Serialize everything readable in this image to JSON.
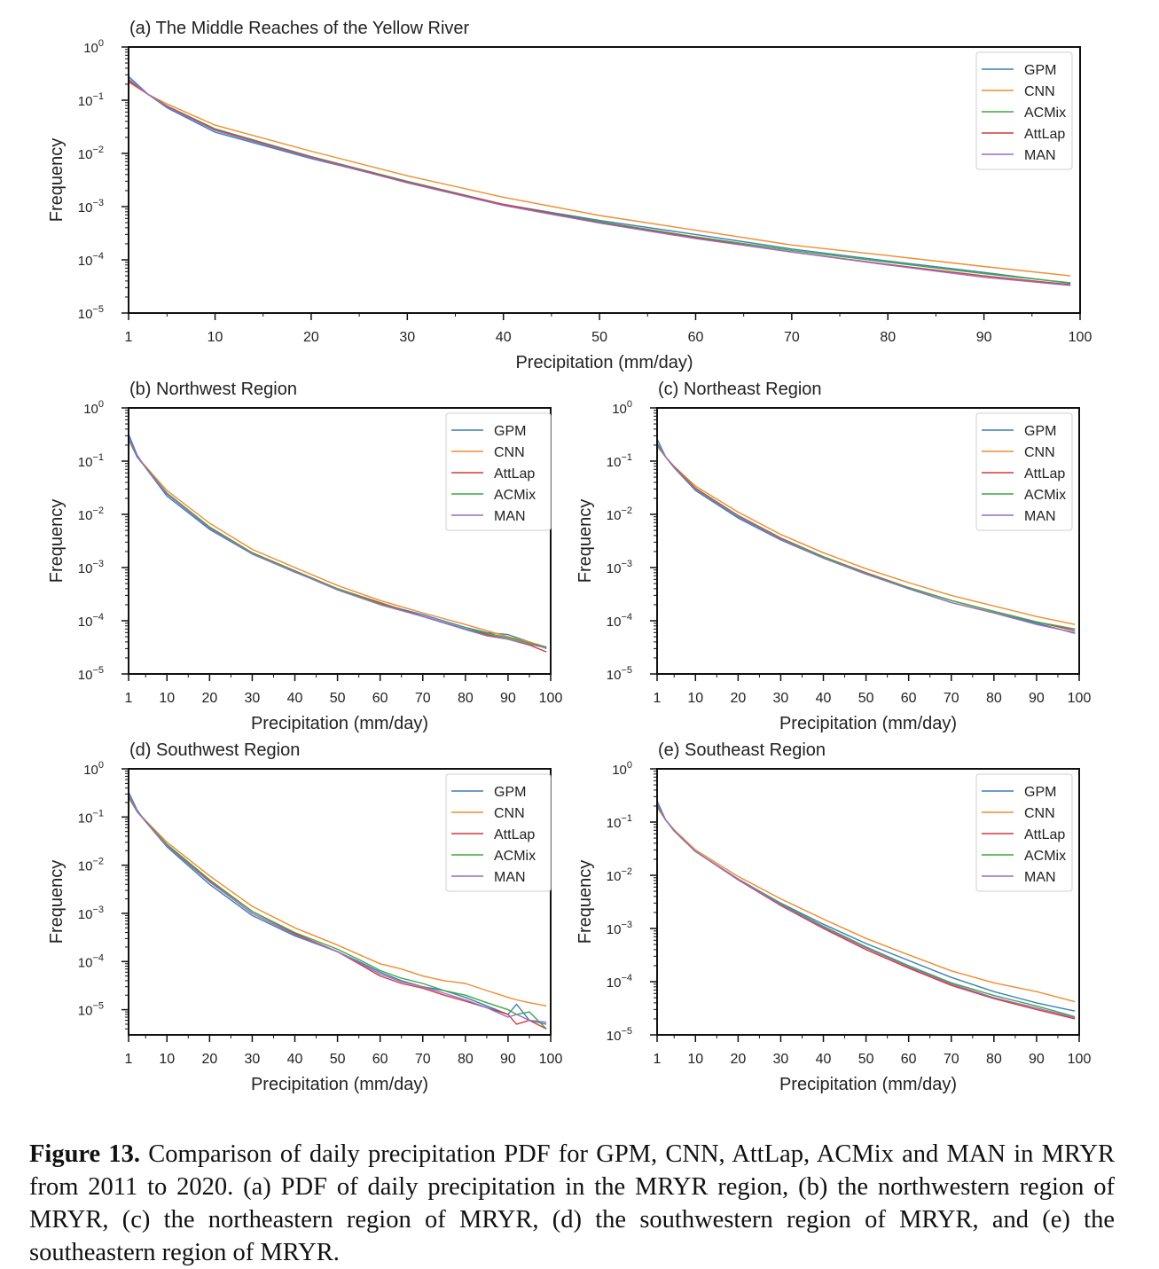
{
  "caption": {
    "label": "Figure 13.",
    "text": "Comparison of daily precipitation PDF for GPM, CNN, AttLap, ACMix and MAN in MRYR from 2011 to 2020. (a) PDF of daily precipitation in the MRYR region, (b) the northwestern region of MRYR, (c) the northeastern region of MRYR, (d) the southwestern region of MRYR, and (e) the southeastern region of MRYR."
  },
  "colors": {
    "GPM": "#3b7fb8",
    "CNN": "#f08c2e",
    "ACMix": "#3caa3c",
    "AttLap": "#d43a3a",
    "MAN": "#9a6cc4"
  },
  "chart_data": [
    {
      "id": "a",
      "type": "line",
      "title": "(a) The Middle Reaches of the Yellow River",
      "xlabel": "Precipitation (mm/day)",
      "ylabel": "Frequency",
      "xlim": [
        1,
        100
      ],
      "ylim": [
        1e-05,
        1
      ],
      "yscale": "log",
      "xticks": [
        1,
        10,
        20,
        30,
        40,
        50,
        60,
        70,
        80,
        90,
        100
      ],
      "yticks": [
        {
          "base": "10",
          "exp": "0"
        },
        {
          "base": "10",
          "exp": "−1"
        },
        {
          "base": "10",
          "exp": "−2"
        },
        {
          "base": "10",
          "exp": "−3"
        },
        {
          "base": "10",
          "exp": "−4"
        },
        {
          "base": "10",
          "exp": "−5"
        }
      ],
      "legend": [
        "GPM",
        "CNN",
        "ACMix",
        "AttLap",
        "MAN"
      ],
      "legend_position": "top-right",
      "x": [
        1,
        3,
        5,
        10,
        20,
        30,
        40,
        50,
        60,
        70,
        80,
        90,
        99
      ],
      "series": [
        {
          "name": "GPM",
          "values": [
            0.28,
            0.13,
            0.072,
            0.025,
            0.008,
            0.0029,
            0.0011,
            0.00055,
            0.0003,
            0.00016,
            9.5e-05,
            5.8e-05,
            3.6e-05
          ]
        },
        {
          "name": "CNN",
          "values": [
            0.22,
            0.13,
            0.085,
            0.034,
            0.011,
            0.0038,
            0.0015,
            0.00068,
            0.00036,
            0.00019,
            0.00012,
            7.5e-05,
            5e-05
          ]
        },
        {
          "name": "ACMix",
          "values": [
            0.24,
            0.13,
            0.078,
            0.029,
            0.0087,
            0.003,
            0.0011,
            0.00052,
            0.00027,
            0.00015,
            9e-05,
            5.5e-05,
            3.7e-05
          ]
        },
        {
          "name": "AttLap",
          "values": [
            0.23,
            0.13,
            0.077,
            0.028,
            0.0085,
            0.0029,
            0.0011,
            0.0005,
            0.00026,
            0.00014,
            8.2e-05,
            5e-05,
            3.4e-05
          ]
        },
        {
          "name": "MAN",
          "values": [
            0.25,
            0.13,
            0.075,
            0.027,
            0.0083,
            0.0028,
            0.00105,
            0.00049,
            0.00025,
            0.00014,
            8e-05,
            4.7e-05,
            3.3e-05
          ]
        }
      ]
    },
    {
      "id": "b",
      "type": "line",
      "title": "(b) Northwest Region",
      "xlabel": "Precipitation (mm/day)",
      "ylabel": "Frequency",
      "xlim": [
        1,
        100
      ],
      "ylim": [
        1e-05,
        1
      ],
      "yscale": "log",
      "xticks": [
        1,
        10,
        20,
        30,
        40,
        50,
        60,
        70,
        80,
        90,
        100
      ],
      "yticks": [
        {
          "base": "10",
          "exp": "0"
        },
        {
          "base": "10",
          "exp": "−1"
        },
        {
          "base": "10",
          "exp": "−2"
        },
        {
          "base": "10",
          "exp": "−3"
        },
        {
          "base": "10",
          "exp": "−4"
        },
        {
          "base": "10",
          "exp": "−5"
        }
      ],
      "legend": [
        "GPM",
        "CNN",
        "AttLap",
        "ACMix",
        "MAN"
      ],
      "legend_position": "top-right",
      "x": [
        1,
        3,
        5,
        10,
        20,
        30,
        40,
        50,
        60,
        70,
        80,
        85,
        90,
        95,
        99
      ],
      "series": [
        {
          "name": "GPM",
          "values": [
            0.32,
            0.13,
            0.075,
            0.022,
            0.0052,
            0.0018,
            0.00082,
            0.0004,
            0.00021,
            0.00013,
            7.5e-05,
            6e-05,
            5.5e-05,
            4e-05,
            3e-05
          ]
        },
        {
          "name": "CNN",
          "values": [
            0.25,
            0.12,
            0.08,
            0.028,
            0.0068,
            0.0022,
            0.001,
            0.00046,
            0.00024,
            0.00014,
            8.5e-05,
            6.5e-05,
            5e-05,
            4e-05,
            3.2e-05
          ]
        },
        {
          "name": "AttLap",
          "values": [
            0.27,
            0.12,
            0.077,
            0.024,
            0.0057,
            0.0019,
            0.00087,
            0.0004,
            0.00022,
            0.00012,
            7e-05,
            5.5e-05,
            4.5e-05,
            3.5e-05,
            2.6e-05
          ]
        },
        {
          "name": "ACMix",
          "values": [
            0.26,
            0.12,
            0.077,
            0.025,
            0.0058,
            0.0019,
            0.00086,
            0.0004,
            0.00021,
            0.00012,
            7e-05,
            5.8e-05,
            4.8e-05,
            3.8e-05,
            3.2e-05
          ]
        },
        {
          "name": "MAN",
          "values": [
            0.28,
            0.12,
            0.076,
            0.024,
            0.0055,
            0.0018,
            0.00083,
            0.00038,
            0.0002,
            0.00012,
            6.8e-05,
            5.2e-05,
            4.5e-05,
            3.6e-05,
            3.1e-05
          ]
        }
      ]
    },
    {
      "id": "c",
      "type": "line",
      "title": "(c) Northeast Region",
      "xlabel": "Precipitation (mm/day)",
      "ylabel": "Frequency",
      "xlim": [
        1,
        100
      ],
      "ylim": [
        1e-05,
        1
      ],
      "yscale": "log",
      "xticks": [
        1,
        10,
        20,
        30,
        40,
        50,
        60,
        70,
        80,
        90,
        100
      ],
      "yticks": [
        {
          "base": "10",
          "exp": "0"
        },
        {
          "base": "10",
          "exp": "−1"
        },
        {
          "base": "10",
          "exp": "−2"
        },
        {
          "base": "10",
          "exp": "−3"
        },
        {
          "base": "10",
          "exp": "−4"
        },
        {
          "base": "10",
          "exp": "−5"
        }
      ],
      "legend": [
        "GPM",
        "CNN",
        "AttLap",
        "ACMix",
        "MAN"
      ],
      "legend_position": "top-right",
      "x": [
        1,
        3,
        5,
        10,
        20,
        30,
        40,
        50,
        60,
        70,
        80,
        90,
        99
      ],
      "series": [
        {
          "name": "GPM",
          "values": [
            0.26,
            0.12,
            0.075,
            0.028,
            0.0085,
            0.0033,
            0.0015,
            0.00075,
            0.0004,
            0.00022,
            0.00014,
            9e-05,
            5.8e-05
          ]
        },
        {
          "name": "CNN",
          "values": [
            0.19,
            0.12,
            0.08,
            0.034,
            0.011,
            0.0042,
            0.0019,
            0.00095,
            0.00052,
            0.0003,
            0.00019,
            0.00012,
            8.5e-05
          ]
        },
        {
          "name": "AttLap",
          "values": [
            0.21,
            0.12,
            0.078,
            0.031,
            0.0095,
            0.0036,
            0.0016,
            0.0008,
            0.00042,
            0.00024,
            0.00015,
            9.5e-05,
            6.5e-05
          ]
        },
        {
          "name": "ACMix",
          "values": [
            0.2,
            0.12,
            0.077,
            0.03,
            0.0093,
            0.0035,
            0.0016,
            0.00078,
            0.00042,
            0.00024,
            0.00015,
            9.5e-05,
            7e-05
          ]
        },
        {
          "name": "MAN",
          "values": [
            0.22,
            0.12,
            0.076,
            0.029,
            0.009,
            0.0034,
            0.0015,
            0.00076,
            0.0004,
            0.00022,
            0.00014,
            8.5e-05,
            6e-05
          ]
        }
      ]
    },
    {
      "id": "d",
      "type": "line",
      "title": "(d) Southwest Region",
      "xlabel": "Precipitation (mm/day)",
      "ylabel": "Frequency",
      "xlim": [
        1,
        100
      ],
      "ylim": [
        3e-06,
        1
      ],
      "yscale": "log",
      "xticks": [
        1,
        10,
        20,
        30,
        40,
        50,
        60,
        70,
        80,
        90,
        100
      ],
      "yticks": [
        {
          "base": "10",
          "exp": "0"
        },
        {
          "base": "10",
          "exp": "−1"
        },
        {
          "base": "10",
          "exp": "−2"
        },
        {
          "base": "10",
          "exp": "−3"
        },
        {
          "base": "10",
          "exp": "−4"
        },
        {
          "base": "10",
          "exp": "−5"
        }
      ],
      "legend": [
        "GPM",
        "CNN",
        "AttLap",
        "ACMix",
        "MAN"
      ],
      "legend_position": "top-right",
      "x": [
        1,
        3,
        5,
        10,
        20,
        30,
        40,
        50,
        55,
        60,
        65,
        70,
        75,
        80,
        85,
        90,
        92,
        95,
        99
      ],
      "series": [
        {
          "name": "GPM",
          "values": [
            0.33,
            0.14,
            0.08,
            0.024,
            0.004,
            0.0009,
            0.00034,
            0.00016,
            0.0001,
            6e-05,
            4e-05,
            3e-05,
            2.5e-05,
            1.8e-05,
            1.2e-05,
            8e-06,
            1.3e-05,
            6e-06,
            5e-06
          ]
        },
        {
          "name": "CNN",
          "values": [
            0.25,
            0.13,
            0.085,
            0.03,
            0.006,
            0.0014,
            0.0005,
            0.00022,
            0.00014,
            9e-05,
            7e-05,
            5e-05,
            4e-05,
            3.5e-05,
            2.5e-05,
            1.8e-05,
            1.6e-05,
            1.4e-05,
            1.2e-05
          ]
        },
        {
          "name": "AttLap",
          "values": [
            0.28,
            0.13,
            0.082,
            0.026,
            0.0048,
            0.0011,
            0.00038,
            0.00016,
            9e-05,
            5e-05,
            3.5e-05,
            2.8e-05,
            2e-05,
            1.5e-05,
            1.1e-05,
            8e-06,
            5e-06,
            6e-06,
            4e-06
          ]
        },
        {
          "name": "ACMix",
          "values": [
            0.27,
            0.13,
            0.082,
            0.027,
            0.005,
            0.0011,
            0.0004,
            0.00018,
            0.00011,
            6.5e-05,
            4.5e-05,
            3.5e-05,
            2.5e-05,
            2e-05,
            1.4e-05,
            1e-05,
            8e-06,
            9e-06,
            4e-06
          ]
        },
        {
          "name": "MAN",
          "values": [
            0.3,
            0.13,
            0.08,
            0.025,
            0.0045,
            0.001,
            0.00036,
            0.00016,
            9.5e-05,
            5.5e-05,
            3.8e-05,
            3e-05,
            2.2e-05,
            1.6e-05,
            1.1e-05,
            7e-06,
            8e-06,
            6e-06,
            5.5e-06
          ]
        }
      ]
    },
    {
      "id": "e",
      "type": "line",
      "title": "(e) Southeast Region",
      "xlabel": "Precipitation (mm/day)",
      "ylabel": "Frequency",
      "xlim": [
        1,
        100
      ],
      "ylim": [
        1e-05,
        1
      ],
      "yscale": "log",
      "xticks": [
        1,
        10,
        20,
        30,
        40,
        50,
        60,
        70,
        80,
        90,
        100
      ],
      "yticks": [
        {
          "base": "10",
          "exp": "0"
        },
        {
          "base": "10",
          "exp": "−1"
        },
        {
          "base": "10",
          "exp": "−2"
        },
        {
          "base": "10",
          "exp": "−3"
        },
        {
          "base": "10",
          "exp": "−4"
        },
        {
          "base": "10",
          "exp": "−5"
        }
      ],
      "legend": [
        "GPM",
        "CNN",
        "AttLap",
        "ACMix",
        "MAN"
      ],
      "legend_position": "top-right",
      "x": [
        1,
        3,
        5,
        10,
        20,
        30,
        40,
        50,
        60,
        70,
        80,
        90,
        99
      ],
      "series": [
        {
          "name": "GPM",
          "values": [
            0.25,
            0.11,
            0.068,
            0.028,
            0.0085,
            0.003,
            0.0012,
            0.00052,
            0.00025,
            0.00012,
            6.5e-05,
            4e-05,
            2.8e-05
          ]
        },
        {
          "name": "CNN",
          "values": [
            0.19,
            0.11,
            0.072,
            0.03,
            0.0095,
            0.0036,
            0.0015,
            0.00065,
            0.00032,
            0.00016,
            9.5e-05,
            6.5e-05,
            4.2e-05
          ]
        },
        {
          "name": "AttLap",
          "values": [
            0.21,
            0.11,
            0.068,
            0.028,
            0.0082,
            0.0027,
            0.001,
            0.0004,
            0.00018,
            8.5e-05,
            4.8e-05,
            3e-05,
            2e-05
          ]
        },
        {
          "name": "ACMix",
          "values": [
            0.2,
            0.11,
            0.069,
            0.028,
            0.0085,
            0.0029,
            0.0011,
            0.00045,
            0.0002,
            9.5e-05,
            5.5e-05,
            3.5e-05,
            2.2e-05
          ]
        },
        {
          "name": "MAN",
          "values": [
            0.22,
            0.11,
            0.068,
            0.028,
            0.0084,
            0.0028,
            0.00105,
            0.00043,
            0.00019,
            9e-05,
            5e-05,
            3.2e-05,
            2.1e-05
          ]
        }
      ]
    }
  ]
}
